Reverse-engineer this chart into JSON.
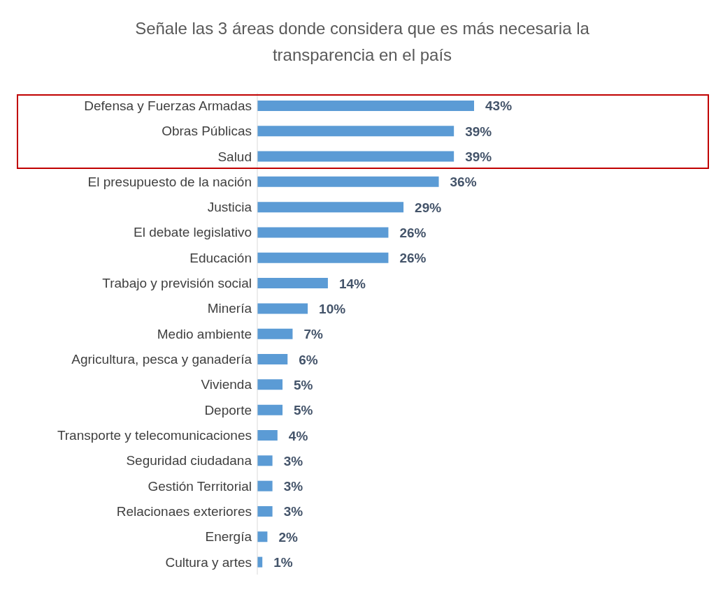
{
  "chart_data": {
    "type": "bar",
    "orientation": "horizontal",
    "title": "Señale las 3 áreas donde considera que es más necesaria la transparencia en el país",
    "categories": [
      "Defensa y Fuerzas Armadas",
      "Obras Públicas",
      "Salud",
      "El presupuesto de la nación",
      "Justicia",
      "El debate legislativo",
      "Educación",
      "Trabajo y previsión social",
      "Minería",
      "Medio ambiente",
      "Agricultura, pesca y ganadería",
      "Vivienda",
      "Deporte",
      "Transporte y telecomunicaciones",
      "Seguridad ciudadana",
      "Gestión Territorial",
      "Relacionaes exteriores",
      "Energía",
      "Cultura y artes"
    ],
    "values": [
      43,
      39,
      39,
      36,
      29,
      26,
      26,
      14,
      10,
      7,
      6,
      5,
      5,
      4,
      3,
      3,
      3,
      2,
      1
    ],
    "value_labels": [
      "43%",
      "39%",
      "39%",
      "36%",
      "29%",
      "26%",
      "26%",
      "14%",
      "10%",
      "7%",
      "6%",
      "5%",
      "5%",
      "4%",
      "3%",
      "3%",
      "3%",
      "2%",
      "1%"
    ],
    "color": "#5b9bd5"
  }
}
